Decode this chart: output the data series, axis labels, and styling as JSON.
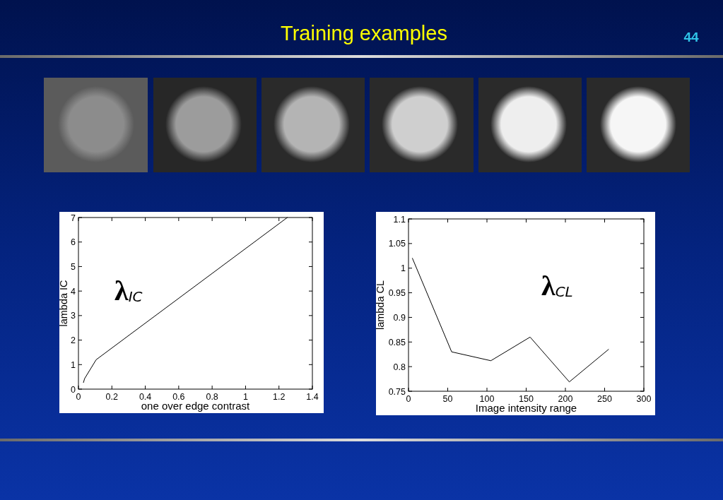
{
  "chart_data": [
    {
      "type": "line",
      "title": "Training examples",
      "annotations": [
        "44",
        "λ$_{IC}$"
      ],
      "xlabel": "one over edge contrast",
      "ylabel": "lambda IC",
      "x": [
        0.03,
        0.037,
        0.106,
        1.25
      ],
      "values": [
        0.27,
        0.43,
        1.2,
        7
      ],
      "color": "#000000",
      "xlim": [
        0,
        1.4
      ],
      "xticks": [
        0,
        0.2,
        0.4,
        0.6,
        0.8,
        1,
        1.2,
        1.4
      ],
      "ylim": [
        0,
        7
      ],
      "yticks": [
        0,
        1,
        2,
        3,
        4,
        5,
        6,
        7
      ]
    },
    {
      "type": "line",
      "annotations": [
        "λ$_{CL}$"
      ],
      "xlabel": "Image intensity range",
      "ylabel": "lambda CL",
      "x": [
        5,
        55,
        105,
        155,
        205,
        255
      ],
      "values": [
        1.02,
        0.83,
        0.812,
        0.86,
        0.769,
        0.835
      ],
      "color": "#000000",
      "xlim": [
        0,
        300
      ],
      "xticks": [
        0,
        50,
        100,
        150,
        200,
        250,
        300
      ],
      "ylim": [
        0.75,
        1.1
      ],
      "yticks": [
        0.75,
        0.8,
        0.85,
        0.9,
        0.95,
        1,
        1.05,
        1.1
      ]
    }
  ]
}
